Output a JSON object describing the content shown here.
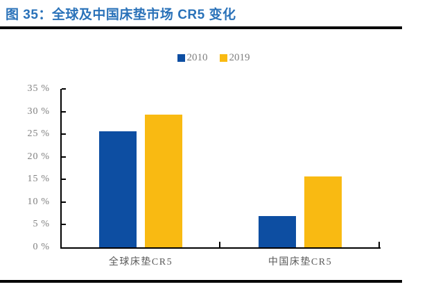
{
  "title": "图 35：全球及中国床垫市场 CR5 变化",
  "colors": {
    "title_blue": "#2A72B9",
    "bar_blue": "#0D4EA2",
    "bar_yellow": "#F9BA12",
    "axis_black": "#000000",
    "ytick_text": "#808080",
    "category_text": "#595959",
    "legend_text": "#7F7F7F"
  },
  "chart_data": {
    "type": "bar",
    "title": "图 35：全球及中国床垫市场 CR5 变化",
    "categories": [
      "全球床垫CR5",
      "中国床垫CR5"
    ],
    "series": [
      {
        "name": "2010",
        "color": "#0D4EA2",
        "values": [
          25.8,
          7.1
        ]
      },
      {
        "name": "2019",
        "color": "#F9BA12",
        "values": [
          29.5,
          15.8
        ]
      }
    ],
    "xlabel": "",
    "ylabel": "",
    "ylim": [
      0,
      35
    ],
    "yticks": [
      0,
      5,
      10,
      15,
      20,
      25,
      30,
      35
    ],
    "ytick_suffix": "%",
    "grid": false,
    "legend_position": "top-center"
  }
}
